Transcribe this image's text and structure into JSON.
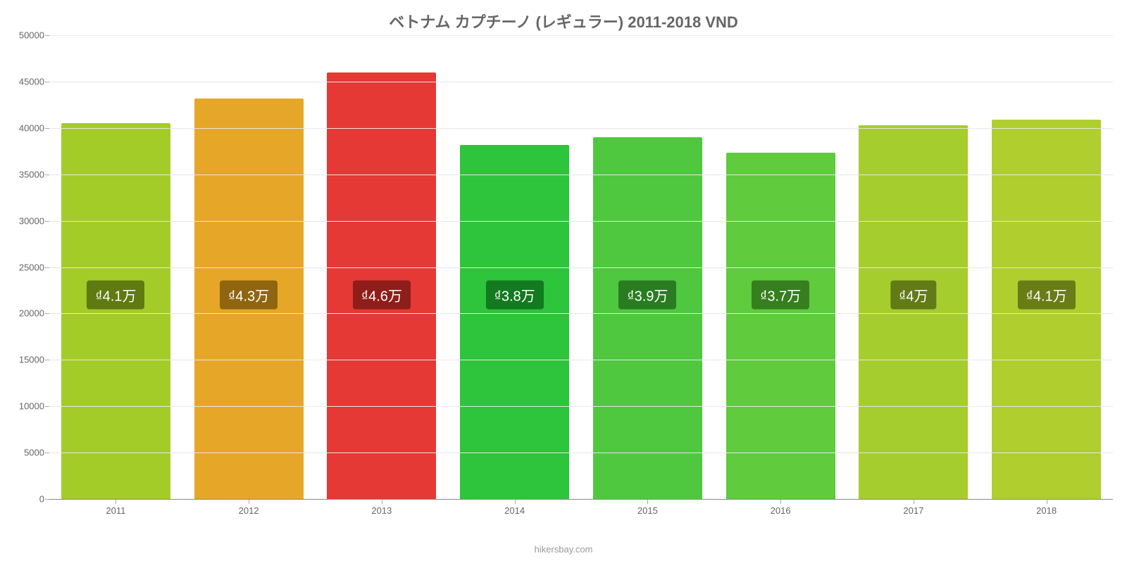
{
  "chart": {
    "type": "bar",
    "title": "ベトナム カプチーノ (レギュラー) 2011-2018 VND",
    "title_fontsize": 22,
    "title_color": "#666666",
    "background_color": "#ffffff",
    "grid_color": "#e6e6e6",
    "axis_label_color": "#666666",
    "axis_label_fontsize": 13,
    "ylim": [
      0,
      50000
    ],
    "ytick_step": 5000,
    "yticks": [
      0,
      5000,
      10000,
      15000,
      20000,
      25000,
      30000,
      35000,
      40000,
      45000,
      50000
    ],
    "categories": [
      "2011",
      "2012",
      "2013",
      "2014",
      "2015",
      "2016",
      "2017",
      "2018"
    ],
    "values": [
      40500,
      43200,
      46000,
      38200,
      39000,
      37300,
      40300,
      40900
    ],
    "bar_colors": [
      "#a4cc28",
      "#e6a728",
      "#e53935",
      "#2ec43c",
      "#4fc840",
      "#5fcb3d",
      "#a6cd2e",
      "#b0ce2e"
    ],
    "bar_labels": [
      "₫4.1万",
      "₫4.3万",
      "₫4.6万",
      "₫3.8万",
      "₫3.9万",
      "₫3.7万",
      "₫4万",
      "₫4.1万"
    ],
    "bar_label_bg_colors": [
      "#5f7a10",
      "#8f6510",
      "#8f1d1a",
      "#137a1f",
      "#2a7c21",
      "#357f1e",
      "#627b16",
      "#6a7c16"
    ],
    "bar_label_fontsize": 20,
    "bar_label_text_color": "#ffffff",
    "bar_label_y_value": 22000,
    "bar_width_ratio": 0.82,
    "attribution": "hikersbay.com",
    "attribution_color": "#999999",
    "attribution_fontsize": 13
  }
}
